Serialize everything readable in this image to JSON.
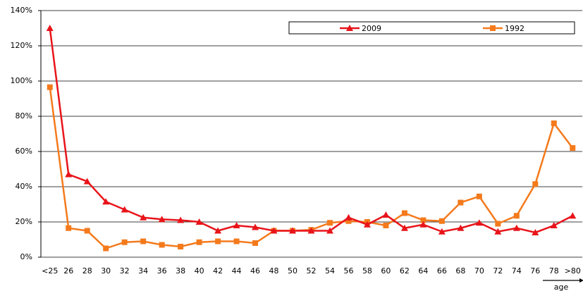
{
  "chart_data": {
    "type": "line",
    "categories": [
      "<25",
      "26",
      "28",
      "30",
      "32",
      "34",
      "36",
      "38",
      "40",
      "42",
      "44",
      "46",
      "48",
      "50",
      "52",
      "54",
      "56",
      "58",
      "60",
      "62",
      "64",
      "66",
      "68",
      "70",
      "72",
      "74",
      "76",
      "78",
      ">80"
    ],
    "series": [
      {
        "name": "2009",
        "color": "#e8141a",
        "marker": "triangle",
        "values": [
          130,
          47,
          43,
          31.5,
          27,
          22.5,
          21.5,
          21,
          20,
          15,
          18,
          17,
          15,
          15,
          15,
          15,
          22.5,
          18.5,
          24,
          16.5,
          18.5,
          14.5,
          16.5,
          19.5,
          14.5,
          16.5,
          14,
          18,
          23.5
        ]
      },
      {
        "name": "1992",
        "color": "#f47a1c",
        "marker": "square",
        "values": [
          96.5,
          16.5,
          15,
          5,
          8.5,
          9,
          7,
          6,
          8.5,
          9,
          9,
          8,
          15,
          15,
          15.5,
          19.5,
          20.5,
          20,
          18,
          25,
          21,
          20.5,
          31,
          34.5,
          19,
          23.5,
          41.5,
          76,
          62
        ]
      }
    ],
    "x_label": "age",
    "ylim": [
      0,
      140
    ],
    "yticks": [
      {
        "value": 0,
        "label": "0%"
      },
      {
        "value": 20,
        "label": "20%"
      },
      {
        "value": 40,
        "label": "40%"
      },
      {
        "value": 60,
        "label": "60%"
      },
      {
        "value": 80,
        "label": "80%"
      },
      {
        "value": 100,
        "label": "100%"
      },
      {
        "value": 120,
        "label": "120%"
      },
      {
        "value": 140,
        "label": "140%"
      }
    ],
    "grid": true
  }
}
